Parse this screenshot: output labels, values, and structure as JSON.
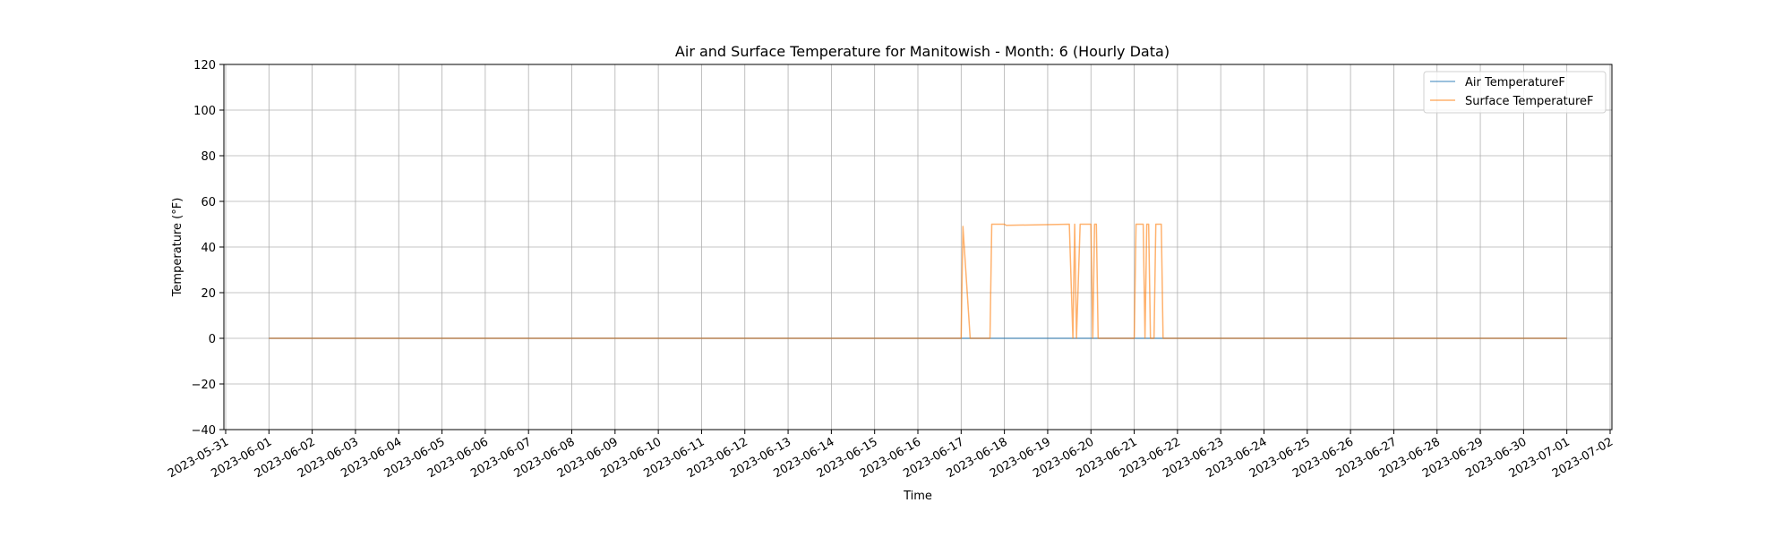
{
  "chart_data": {
    "type": "line",
    "title": "Air and Surface Temperature for Manitowish - Month: 6 (Hourly Data)",
    "xlabel": "Time",
    "ylabel": "Temperature (°F)",
    "xlim": [
      "2023-05-30T23:00",
      "2023-07-02T01:00"
    ],
    "ylim": [
      -40,
      120
    ],
    "yticks": [
      -40,
      -20,
      0,
      20,
      40,
      60,
      80,
      100,
      120
    ],
    "xticks": [
      "2023-05-31",
      "2023-06-01",
      "2023-06-02",
      "2023-06-03",
      "2023-06-04",
      "2023-06-05",
      "2023-06-06",
      "2023-06-07",
      "2023-06-08",
      "2023-06-09",
      "2023-06-10",
      "2023-06-11",
      "2023-06-12",
      "2023-06-13",
      "2023-06-14",
      "2023-06-15",
      "2023-06-16",
      "2023-06-17",
      "2023-06-18",
      "2023-06-19",
      "2023-06-20",
      "2023-06-21",
      "2023-06-22",
      "2023-06-23",
      "2023-06-24",
      "2023-06-25",
      "2023-06-26",
      "2023-06-27",
      "2023-06-28",
      "2023-06-29",
      "2023-06-30",
      "2023-07-01",
      "2023-07-02"
    ],
    "grid": true,
    "legend_position": "top-right",
    "series": [
      {
        "name": "Air TemperatureF",
        "color": "#1f77b4",
        "x": [
          "2023-06-01T00:00",
          "2023-07-01T00:00"
        ],
        "y": [
          0,
          0
        ]
      },
      {
        "name": "Surface TemperatureF",
        "color": "#ff7f0e",
        "x": [
          "2023-06-01T00:00",
          "2023-06-17T00:00",
          "2023-06-17T01:00",
          "2023-06-17T05:00",
          "2023-06-17T16:00",
          "2023-06-17T17:00",
          "2023-06-18T00:00",
          "2023-06-18T01:00",
          "2023-06-19T12:00",
          "2023-06-19T14:00",
          "2023-06-19T15:00",
          "2023-06-19T16:00",
          "2023-06-19T18:00",
          "2023-06-20T00:00",
          "2023-06-20T01:00",
          "2023-06-20T02:00",
          "2023-06-20T03:00",
          "2023-06-20T04:00",
          "2023-06-21T00:00",
          "2023-06-21T01:00",
          "2023-06-21T05:00",
          "2023-06-21T06:00",
          "2023-06-21T07:00",
          "2023-06-21T08:00",
          "2023-06-21T09:00",
          "2023-06-21T11:00",
          "2023-06-21T12:00",
          "2023-06-21T15:00",
          "2023-06-21T16:00",
          "2023-07-01T00:00"
        ],
        "y": [
          0,
          0,
          49,
          0,
          0,
          50,
          50,
          49.5,
          50,
          0,
          50,
          0,
          50,
          50,
          0,
          50,
          50,
          0,
          0,
          50,
          50,
          0,
          50,
          50,
          0,
          0,
          50,
          50,
          0,
          0
        ]
      }
    ]
  }
}
